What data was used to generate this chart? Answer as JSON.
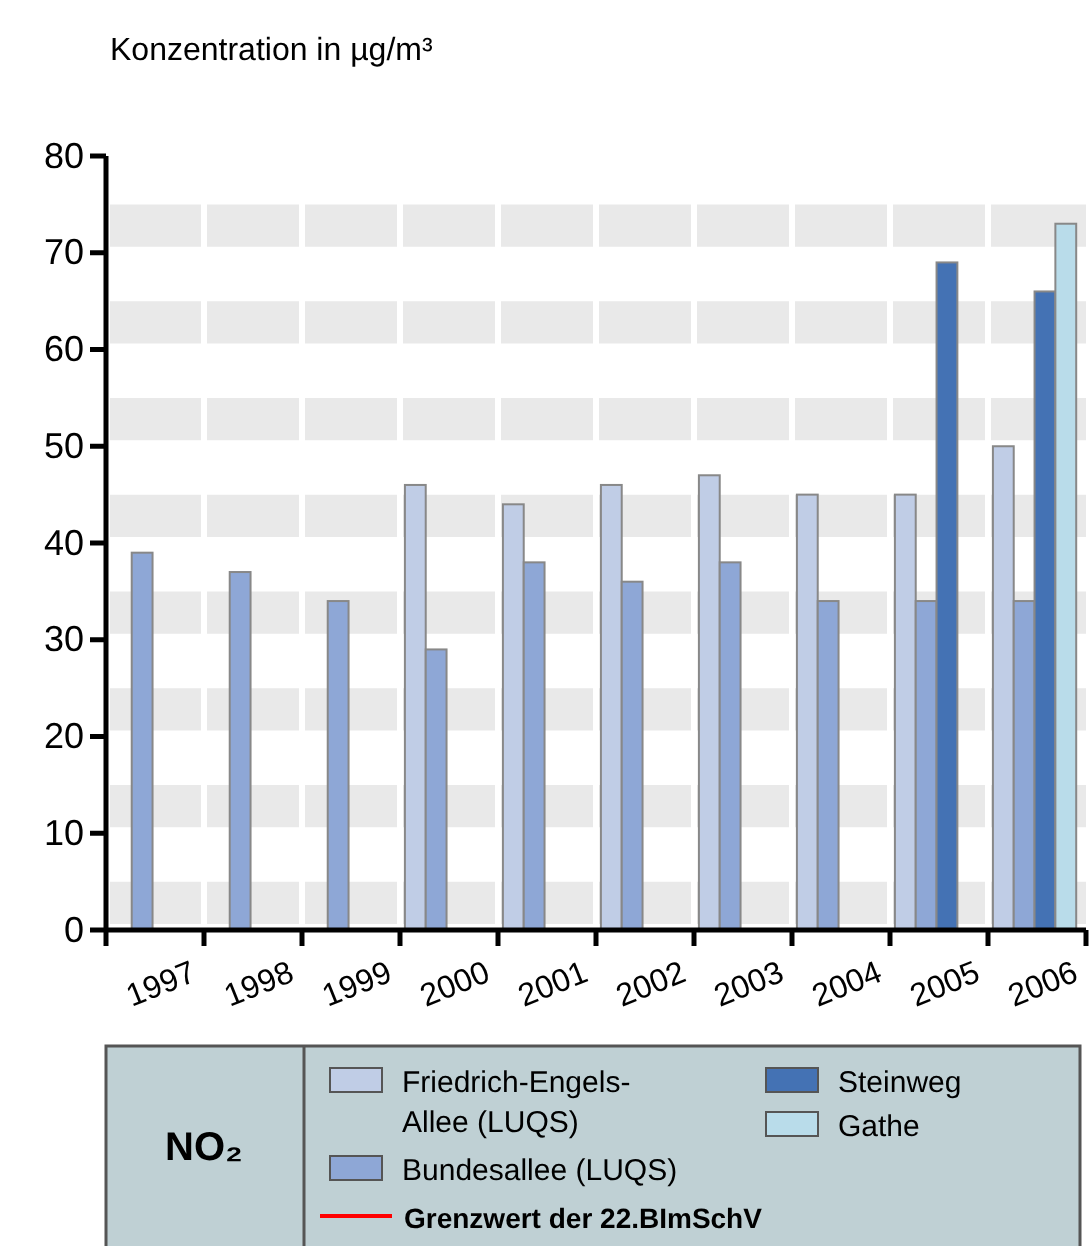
{
  "chart_data": {
    "type": "bar",
    "ylabel": "Konzentration in µg/m³",
    "legend_title": "NO₂",
    "categories": [
      "1997",
      "1998",
      "1999",
      "2000",
      "2001",
      "2002",
      "2003",
      "2004",
      "2005",
      "2006"
    ],
    "series": [
      {
        "name": "Friedrich-Engels-Allee (LUQS)",
        "color": "#c0cde6",
        "values": [
          null,
          null,
          null,
          46,
          44,
          46,
          47,
          45,
          45,
          50
        ]
      },
      {
        "name": "Bundesallee (LUQS)",
        "color": "#8ea7d6",
        "values": [
          39,
          37,
          34,
          29,
          38,
          36,
          38,
          34,
          34,
          34
        ]
      },
      {
        "name": "Steinweg",
        "color": "#4472b4",
        "values": [
          null,
          null,
          null,
          null,
          null,
          null,
          null,
          null,
          69,
          66
        ]
      },
      {
        "name": "Gathe",
        "color": "#b9dcea",
        "values": [
          null,
          null,
          null,
          null,
          null,
          null,
          null,
          null,
          null,
          73
        ]
      },
      {
        "name": "Grenzwert der 22.BImSchV",
        "type": "line",
        "color": "#ff0000",
        "values": [
          null,
          null,
          null,
          null,
          null,
          null,
          null,
          null,
          null,
          null
        ]
      }
    ],
    "ylim": [
      0,
      80
    ],
    "yticks": [
      0,
      10,
      20,
      30,
      40,
      50,
      60,
      70,
      80
    ],
    "grid": true,
    "legend": "bottom"
  }
}
